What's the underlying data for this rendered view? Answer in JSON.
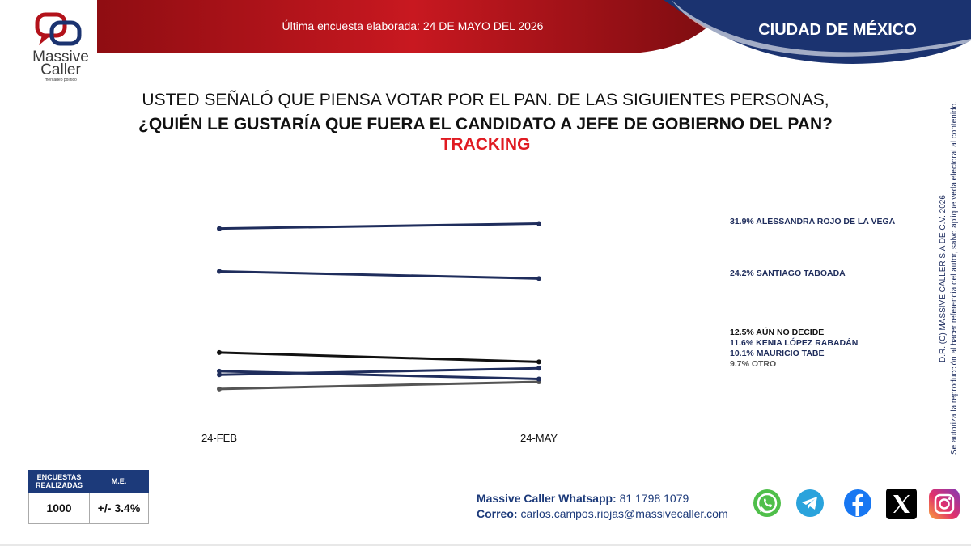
{
  "header": {
    "brand_line1": "Massive",
    "brand_line2": "Caller",
    "brand_tagline": "mercadeo político",
    "survey_date": "Última encuesta elaborada: 24 DE MAYO DEL 2026",
    "region": "CIUDAD DE MÉXICO"
  },
  "question": {
    "line1": "USTED SEÑALÓ QUE PIENSA VOTAR POR EL PAN. DE LAS SIGUIENTES PERSONAS,",
    "line2": "¿QUIÉN LE GUSTARÍA QUE FUERA EL CANDIDATO A JEFE DE GOBIERNO DEL PAN?",
    "line3": "TRACKING"
  },
  "chart_data": {
    "type": "line",
    "x": [
      "24-FEB",
      "24-MAY"
    ],
    "ylim": [
      8,
      34
    ],
    "series": [
      {
        "name": "ALESSANDRA ROJO DE LA VEGA",
        "values": [
          31.2,
          31.9
        ],
        "color": "#1f2d5c",
        "label": "31.9% ALESSANDRA ROJO DE LA VEGA"
      },
      {
        "name": "SANTIAGO TABOADA",
        "values": [
          25.2,
          24.2
        ],
        "color": "#1f2d5c",
        "label": "24.2% SANTIAGO TABOADA"
      },
      {
        "name": "AÚN NO DECIDE",
        "values": [
          13.8,
          12.5
        ],
        "color": "#111111",
        "label": "12.5% AÚN NO DECIDE"
      },
      {
        "name": "KENIA LÓPEZ RABADÁN",
        "values": [
          10.7,
          11.6
        ],
        "color": "#1f2d5c",
        "label": "11.6% KENIA LÓPEZ RABADÁN"
      },
      {
        "name": "MAURICIO TABE",
        "values": [
          11.2,
          10.1
        ],
        "color": "#1f2d5c",
        "label": "10.1% MAURICIO TABE"
      },
      {
        "name": "OTRO",
        "values": [
          8.7,
          9.7
        ],
        "color": "#555555",
        "label": "9.7% OTRO"
      }
    ]
  },
  "stats": {
    "col1_header": "ENCUESTAS REALIZADAS",
    "col2_header": "M.E.",
    "col1_value": "1000",
    "col2_value": "+/- 3.4%"
  },
  "contact": {
    "whatsapp_prefix": "Massive Caller Whatsapp:",
    "whatsapp_number": "81 1798 1079",
    "email_prefix": "Correo:",
    "email": "carlos.campos.riojas@massivecaller.com"
  },
  "side_note": {
    "line1": "D.R. (C) MASSIVE CALLER S.A DE C.V. 2026",
    "line2": "Se autoriza la reproducción al hacer referencia del autor, salvo aplique veda electoral al contenido."
  },
  "social_icons": [
    "whatsapp-icon",
    "telegram-icon",
    "facebook-icon",
    "x-icon",
    "instagram-icon"
  ],
  "colors": {
    "red": "#b3121b",
    "navy": "#1b3370",
    "accent_red": "#e01b22"
  }
}
